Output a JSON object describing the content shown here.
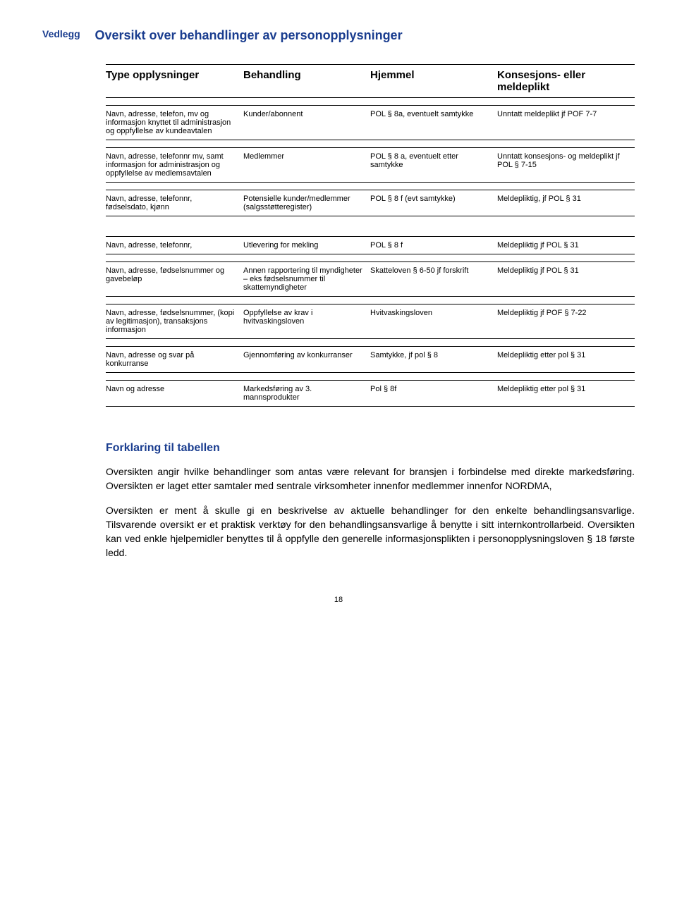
{
  "vedlegg_label": "Vedlegg",
  "title": "Oversikt over behandlinger av personopplysninger",
  "columns": {
    "c1": "Type opplysninger",
    "c2": "Behandling",
    "c3": "Hjemmel",
    "c4": "Konsesjons- eller meldeplikt"
  },
  "rows": [
    {
      "c1": "Navn, adresse, telefon, mv og informasjon knyttet til administrasjon og oppfyllelse av kundeavtalen",
      "c2": "Kunder/abonnent",
      "c3": "POL § 8a, eventuelt samtykke",
      "c4": "Unntatt meldeplikt jf POF 7-7"
    },
    {
      "c1": "Navn, adresse, telefonnr mv, samt informasjon for administrasjon og oppfyllelse av medlemsavtalen",
      "c2": "Medlemmer",
      "c3": "POL § 8 a, eventuelt etter samtykke",
      "c4": "Unntatt konsesjons- og meldeplikt jf POL § 7-15"
    },
    {
      "c1": "Navn, adresse, telefonnr, fødselsdato, kjønn",
      "c2": "Potensielle kunder/medlemmer (salgsstøtteregister)",
      "c3": "POL § 8 f (evt samtykke)",
      "c4": "Meldepliktig, jf POL § 31"
    },
    {
      "c1": "Navn, adresse, telefonnr,",
      "c2": "Utlevering for mekling",
      "c3": "POL § 8 f",
      "c4": "Meldepliktig jf POL § 31"
    },
    {
      "c1": "Navn, adresse, fødselsnummer og gavebeløp",
      "c2": "Annen rapportering til myndigheter – eks fødselsnummer til skattemyndigheter",
      "c3": "Skatteloven § 6-50 jf forskrift",
      "c4": "Meldepliktig jf POL § 31"
    },
    {
      "c1": "Navn, adresse, fødselsnummer, (kopi av legitimasjon), transaksjons informasjon",
      "c2": "Oppfyllelse av krav i hvitvaskingsloven",
      "c3": "Hvitvaskingsloven",
      "c4": "Meldepliktig jf POF § 7-22"
    },
    {
      "c1": "Navn, adresse og svar på konkurranse",
      "c2": "Gjennomføring av konkurranser",
      "c3": "Samtykke, jf pol § 8",
      "c4": "Meldepliktig etter pol § 31"
    },
    {
      "c1": "Navn og adresse",
      "c2": "Markedsføring av 3. mannsprodukter",
      "c3": "Pol § 8f",
      "c4": "Meldepliktig etter pol § 31"
    }
  ],
  "explanation": {
    "heading": "Forklaring til tabellen",
    "p1": "Oversikten angir hvilke behandlinger som antas være relevant for bransjen i forbindelse med direkte markedsføring. Oversikten er laget etter samtaler med sentrale virksomheter innenfor medlemmer innenfor NORDMA,",
    "p2": "Oversikten er ment å skulle gi en beskrivelse av aktuelle behandlinger for den enkelte behandlingsansvarlige. Tilsvarende oversikt er et praktisk verktøy for den behandlingsansvarlige å benytte i sitt internkontrollarbeid. Oversikten kan ved enkle hjelpemidler benyttes til å oppfylle den generelle informasjonsplikten i personopplysningsloven § 18 første ledd."
  },
  "page_number": "18"
}
